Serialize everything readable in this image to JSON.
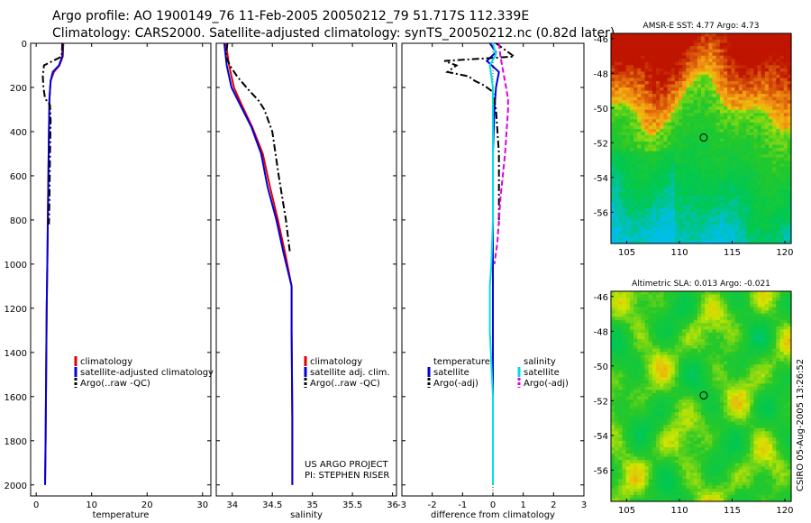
{
  "header": {
    "line1": "Argo profile: AO 1900149_76 11-Feb-2005 20050212_79 51.717S 112.339E",
    "line2": "Climatology: CARS2000. Satellite-adjusted climatology: synTS_20050212.nc (0.82d later)"
  },
  "footer": {
    "project": "US ARGO PROJECT",
    "pi": "PI: STEPHEN RISER",
    "stamp": "CSIRO 05-Aug-2005 13:26:52"
  },
  "colors": {
    "climatology": "#e00000",
    "satellite": "#0000dd",
    "argo": "#000000",
    "salinity_sat": "#00e0e0",
    "salinity_argo": "#e000e0"
  },
  "chart_data": [
    {
      "id": "temperature",
      "type": "line",
      "xlabel": "temperature",
      "ylabel": "",
      "xlim": [
        -1,
        31.5
      ],
      "ylim": [
        2050,
        0
      ],
      "xticks": [
        "0",
        "10",
        "20",
        "30"
      ],
      "xtick_values": [
        0,
        10,
        20,
        30
      ],
      "yticks": [
        "0",
        "200",
        "400",
        "600",
        "800",
        "1000",
        "1200",
        "1400",
        "1600",
        "1800",
        "2000"
      ],
      "ytick_values": [
        0,
        200,
        400,
        600,
        800,
        1000,
        1200,
        1400,
        1600,
        1800,
        2000
      ],
      "legend": [
        "climatology",
        "satellite-adjusted climatology",
        "Argo(..raw -QC)"
      ],
      "series": [
        {
          "name": "climatology",
          "style": "solid",
          "color": "#e00000",
          "x": [
            4.9,
            4.8,
            4.2,
            3.2,
            2.6,
            2.4,
            2.3,
            2.2,
            2.1,
            2.0,
            1.9,
            1.8,
            1.7,
            1.6
          ],
          "y": [
            0,
            60,
            100,
            130,
            170,
            250,
            400,
            600,
            800,
            1000,
            1200,
            1500,
            1800,
            2000
          ]
        },
        {
          "name": "satellite-adjusted climatology",
          "style": "solid",
          "color": "#0000dd",
          "x": [
            4.8,
            4.7,
            4.1,
            3.0,
            2.6,
            2.4,
            2.3,
            2.2,
            2.1,
            2.0,
            1.9,
            1.8,
            1.7,
            1.6
          ],
          "y": [
            0,
            60,
            100,
            130,
            170,
            250,
            400,
            600,
            800,
            1000,
            1200,
            1500,
            1800,
            2000
          ]
        },
        {
          "name": "Argo(..raw -QC)",
          "style": "dashdot",
          "color": "#000000",
          "x": [
            4.7,
            4.6,
            3.0,
            1.4,
            1.2,
            1.3,
            1.6,
            2.5,
            2.6,
            2.5,
            2.4,
            2.3
          ],
          "y": [
            0,
            60,
            80,
            100,
            150,
            200,
            250,
            280,
            350,
            500,
            700,
            820
          ]
        }
      ]
    },
    {
      "id": "salinity",
      "type": "line",
      "xlabel": "salinity",
      "ylabel": "",
      "xlim": [
        33.8,
        36.05
      ],
      "ylim": [
        2050,
        0
      ],
      "xticks": [
        "34",
        "34.5",
        "35",
        "35.5",
        "36"
      ],
      "xtick_values": [
        34,
        34.5,
        35,
        35.5,
        36
      ],
      "yticks": [],
      "legend": [
        "climatology",
        "satellite adj. clim.",
        "Argo(..raw -QC)"
      ],
      "series": [
        {
          "name": "climatology",
          "style": "solid",
          "color": "#e00000",
          "x": [
            33.92,
            33.96,
            34.02,
            34.12,
            34.25,
            34.38,
            34.47,
            34.57,
            34.66,
            34.74,
            34.74,
            34.75,
            34.75
          ],
          "y": [
            0,
            100,
            200,
            280,
            380,
            500,
            650,
            800,
            950,
            1100,
            1300,
            1700,
            2000
          ]
        },
        {
          "name": "satellite adj. clim.",
          "style": "solid",
          "color": "#0000dd",
          "x": [
            33.9,
            33.93,
            33.99,
            34.1,
            34.24,
            34.36,
            34.44,
            34.55,
            34.64,
            34.74,
            34.74,
            34.75,
            34.75
          ],
          "y": [
            0,
            100,
            200,
            280,
            380,
            500,
            650,
            800,
            950,
            1100,
            1300,
            1700,
            2000
          ]
        },
        {
          "name": "Argo(..raw -QC)",
          "style": "dashdot",
          "color": "#000000",
          "x": [
            33.94,
            33.92,
            33.97,
            34.06,
            34.2,
            34.33,
            34.4,
            34.5,
            34.58,
            34.67,
            34.72
          ],
          "y": [
            0,
            60,
            100,
            150,
            210,
            260,
            300,
            400,
            600,
            800,
            950
          ]
        }
      ]
    },
    {
      "id": "difference",
      "type": "line",
      "xlabel": "difference from climatology",
      "ylabel": "",
      "xlim": [
        -3,
        3
      ],
      "ylim": [
        2050,
        0
      ],
      "xticks": [
        "-3",
        "-2",
        "-1",
        "0",
        "1",
        "2",
        "3"
      ],
      "xtick_values": [
        -3,
        -2,
        -1,
        0,
        1,
        2,
        3
      ],
      "yticks": [],
      "legend_left_title": "temperature",
      "legend_left": [
        "satellite",
        "Argo(-adj)"
      ],
      "legend_right_title": "salinity",
      "legend_right": [
        "satellite",
        "Argo(-adj)"
      ],
      "series": [
        {
          "name": "temperature satellite",
          "style": "solid",
          "color": "#0000dd",
          "x": [
            -0.1,
            0.1,
            -0.2,
            0.2,
            0.1,
            0.05,
            0.0,
            0.0,
            0.0,
            0.0,
            0.0
          ],
          "y": [
            0,
            40,
            80,
            130,
            200,
            300,
            500,
            800,
            1100,
            1500,
            2000
          ]
        },
        {
          "name": "temperature Argo(-adj)",
          "style": "dashdot",
          "color": "#000000",
          "x": [
            0.1,
            0.7,
            -1.6,
            -1.2,
            -1.5,
            -0.8,
            -0.6,
            -0.3,
            0.0,
            0.1,
            0.2,
            0.2
          ],
          "y": [
            0,
            60,
            80,
            100,
            130,
            150,
            170,
            190,
            220,
            300,
            500,
            820
          ]
        },
        {
          "name": "salinity satellite",
          "style": "solid",
          "color": "#00e0e0",
          "x": [
            0.0,
            0.1,
            -0.1,
            0.0,
            0.0,
            0.0,
            -0.05,
            -0.1,
            -0.1,
            0.0,
            0.0
          ],
          "y": [
            0,
            50,
            100,
            200,
            400,
            800,
            1000,
            1100,
            1300,
            1600,
            2000
          ]
        },
        {
          "name": "salinity Argo(-adj)",
          "style": "dashed",
          "color": "#e000e0",
          "x": [
            0.2,
            0.25,
            0.5,
            0.5,
            0.4,
            0.25,
            0.15,
            0.05
          ],
          "y": [
            0,
            60,
            250,
            300,
            500,
            700,
            900,
            1000
          ]
        }
      ]
    },
    {
      "id": "sst_map",
      "type": "heatmap",
      "title": "AMSR-E SST: 4.77 Argo: 4.73",
      "xticks": [
        "105",
        "110",
        "115",
        "120"
      ],
      "xtick_values": [
        105,
        110,
        115,
        120
      ],
      "yticks": [
        "-46",
        "-48",
        "-50",
        "-52",
        "-54",
        "-56"
      ],
      "ytick_values": [
        -46,
        -48,
        -50,
        -52,
        -54,
        -56
      ],
      "xlim": [
        103.5,
        120.6
      ],
      "ylim": [
        -57.8,
        -45.7
      ],
      "marker": {
        "lon": 112.3,
        "lat": -51.7
      }
    },
    {
      "id": "sla_map",
      "type": "heatmap",
      "title": "Altimetric SLA: 0.013 Argo: -0.021",
      "xticks": [
        "105",
        "110",
        "115",
        "120"
      ],
      "xtick_values": [
        105,
        110,
        115,
        120
      ],
      "yticks": [
        "-46",
        "-48",
        "-50",
        "-52",
        "-54",
        "-56"
      ],
      "ytick_values": [
        -46,
        -48,
        -50,
        -52,
        -54,
        -56
      ],
      "xlim": [
        103.5,
        120.6
      ],
      "ylim": [
        -57.8,
        -45.7
      ],
      "marker": {
        "lon": 112.3,
        "lat": -51.7
      }
    }
  ]
}
